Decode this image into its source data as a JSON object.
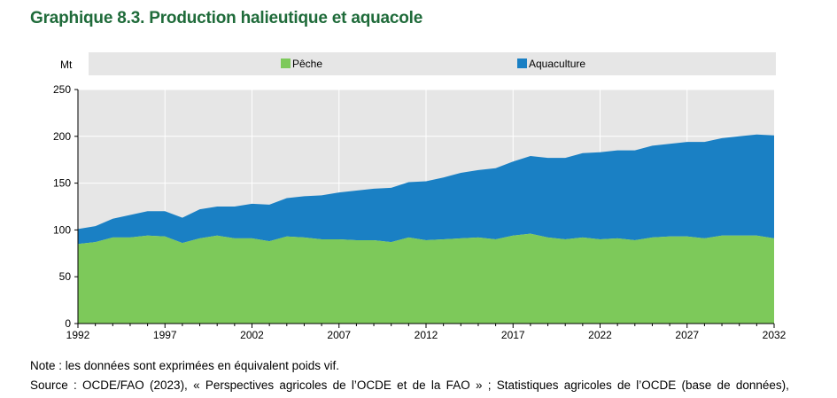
{
  "title": "Graphique 8.3. Production halieutique et aquacole",
  "note": "Note : les données sont exprimées en équivalent poids vif.",
  "source": "Source : OCDE/FAO (2023), « Perspectives agricoles de l’OCDE et de la FAO » ; Statistiques agricoles de l’OCDE (base de données),",
  "colors": {
    "peche": "#7dc95a",
    "aquaculture": "#1a80c4",
    "legend_bg": "#e6e6e6",
    "grid": "#ffffff",
    "plot_bg": "#e6e6e6"
  },
  "chart_data": {
    "type": "area",
    "stacked": true,
    "ylabel": "Mt",
    "ylim": [
      0,
      250
    ],
    "yticks": [
      0,
      50,
      100,
      150,
      200,
      250
    ],
    "xlim": [
      1992,
      2032
    ],
    "xticks": [
      1992,
      1997,
      2002,
      2007,
      2012,
      2017,
      2022,
      2027,
      2032
    ],
    "legend_placement": "top",
    "x": [
      1992,
      1993,
      1994,
      1995,
      1996,
      1997,
      1998,
      1999,
      2000,
      2001,
      2002,
      2003,
      2004,
      2005,
      2006,
      2007,
      2008,
      2009,
      2010,
      2011,
      2012,
      2013,
      2014,
      2015,
      2016,
      2017,
      2018,
      2019,
      2020,
      2021,
      2022,
      2023,
      2024,
      2025,
      2026,
      2027,
      2028,
      2029,
      2030,
      2031,
      2032
    ],
    "series": [
      {
        "name": "Pêche",
        "values": [
          85,
          87,
          92,
          92,
          94,
          93,
          86,
          91,
          94,
          91,
          91,
          88,
          93,
          92,
          90,
          90,
          89,
          89,
          87,
          92,
          89,
          90,
          91,
          92,
          90,
          94,
          96,
          92,
          90,
          92,
          90,
          91,
          89,
          92,
          93,
          93,
          91,
          94,
          94,
          94,
          91
        ]
      },
      {
        "name": "Aquaculture",
        "values": [
          16,
          17,
          20,
          24,
          26,
          27,
          27,
          31,
          31,
          34,
          37,
          39,
          41,
          44,
          47,
          50,
          53,
          55,
          58,
          59,
          63,
          66,
          70,
          72,
          76,
          79,
          83,
          85,
          87,
          90,
          93,
          94,
          96,
          98,
          99,
          101,
          103,
          104,
          106,
          108,
          110
        ]
      }
    ]
  }
}
